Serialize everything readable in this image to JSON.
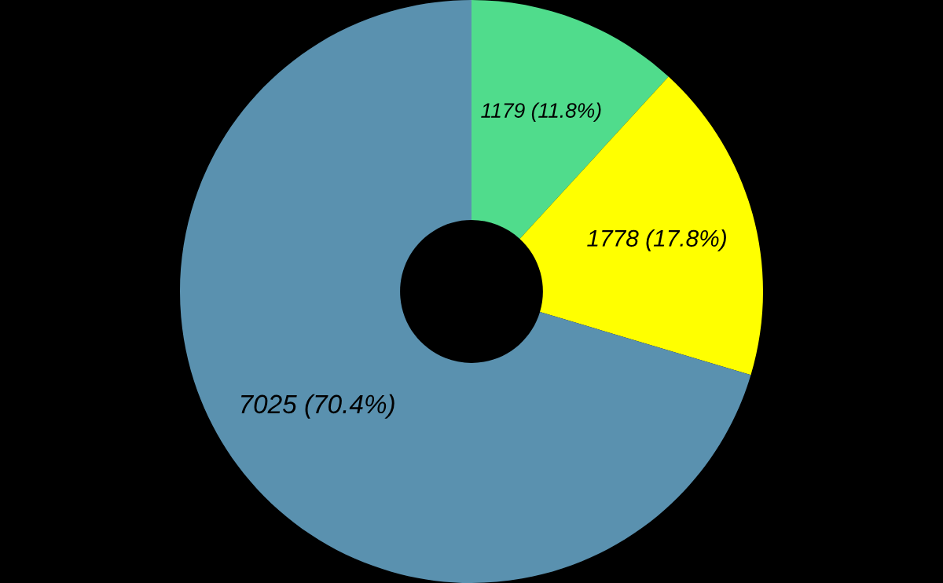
{
  "chart_data": {
    "type": "donut",
    "categories": [
      null,
      null,
      null
    ],
    "values": [
      1179,
      1778,
      7025
    ],
    "colors": [
      "#50dc8c",
      "#ffff00",
      "#5a91af"
    ],
    "value_labels": [
      "1179 (11.8%)",
      "1778 (17.8%)",
      "7025 (70.4%)"
    ],
    "legend": false
  }
}
